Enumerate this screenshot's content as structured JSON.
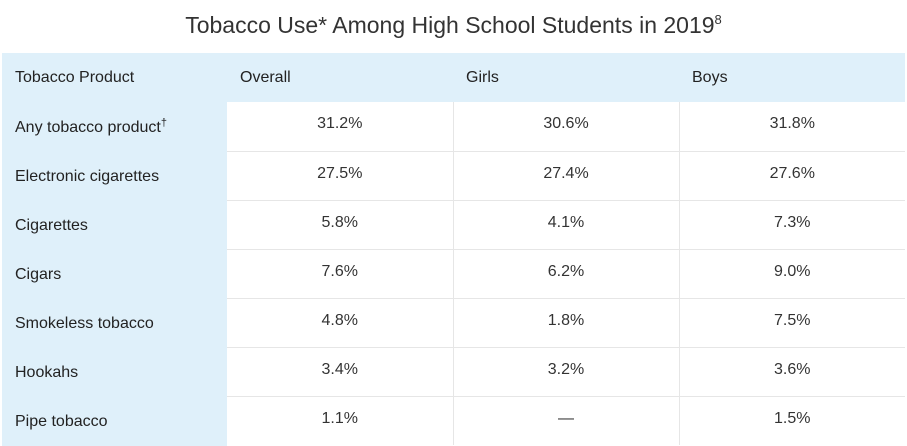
{
  "title": {
    "text": "Tobacco Use* Among High School Students in 2019",
    "superscript": "8"
  },
  "table": {
    "headers": [
      "Tobacco Product",
      "Overall",
      "Girls",
      "Boys"
    ],
    "rows": [
      {
        "product": "Any tobacco product",
        "mark": "†",
        "overall": "31.2%",
        "girls": "30.6%",
        "boys": "31.8%"
      },
      {
        "product": "Electronic cigarettes",
        "mark": "",
        "overall": "27.5%",
        "girls": "27.4%",
        "boys": "27.6%"
      },
      {
        "product": "Cigarettes",
        "mark": "",
        "overall": "5.8%",
        "girls": "4.1%",
        "boys": "7.3%"
      },
      {
        "product": "Cigars",
        "mark": "",
        "overall": "7.6%",
        "girls": "6.2%",
        "boys": "9.0%"
      },
      {
        "product": "Smokeless tobacco",
        "mark": "",
        "overall": "4.8%",
        "girls": "1.8%",
        "boys": "7.5%"
      },
      {
        "product": "Hookahs",
        "mark": "",
        "overall": "3.4%",
        "girls": "3.2%",
        "boys": "3.6%"
      },
      {
        "product": "Pipe tobacco",
        "mark": "",
        "overall": "1.1%",
        "girls": "—",
        "boys": "1.5%"
      }
    ]
  },
  "colors": {
    "header_background": "#dff0fa",
    "grid_line": "#e6e6e6"
  }
}
